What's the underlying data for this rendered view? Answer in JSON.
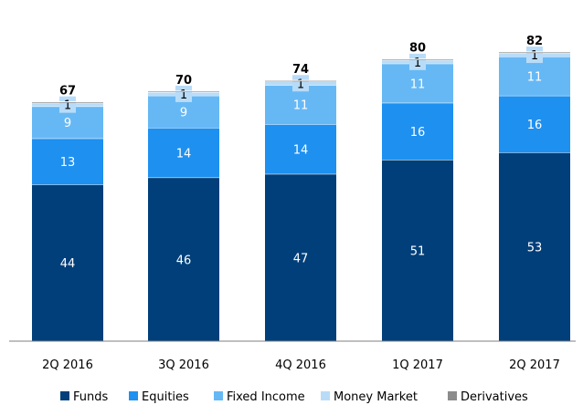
{
  "chart_data": {
    "type": "bar",
    "stacked": true,
    "categories": [
      "2Q 2016",
      "3Q 2016",
      "4Q 2016",
      "1Q 2017",
      "2Q 2017"
    ],
    "series": [
      {
        "name": "Funds",
        "values": [
          44,
          46,
          47,
          51,
          53
        ],
        "color": "#003f7a"
      },
      {
        "name": "Equities",
        "values": [
          13,
          14,
          14,
          16,
          16
        ],
        "color": "#1e90f0"
      },
      {
        "name": "Fixed Income",
        "values": [
          9,
          9,
          11,
          11,
          11
        ],
        "color": "#66b8f5"
      },
      {
        "name": "Money Market",
        "values": [
          1,
          1,
          1,
          1,
          1
        ],
        "color": "#b8dcf8"
      },
      {
        "name": "Derivatives",
        "values": [
          0.3,
          0.3,
          0.3,
          0.3,
          0.3
        ],
        "color": "#8c8c8c"
      }
    ],
    "totals": [
      67,
      70,
      74,
      80,
      82
    ],
    "ylim": [
      0,
      82
    ],
    "grid": false,
    "legend_position": "bottom",
    "segment_label_colors": {
      "Funds": "#ffffff",
      "Equities": "#ffffff",
      "Fixed Income": "#ffffff",
      "Money Market": "#000000"
    }
  }
}
